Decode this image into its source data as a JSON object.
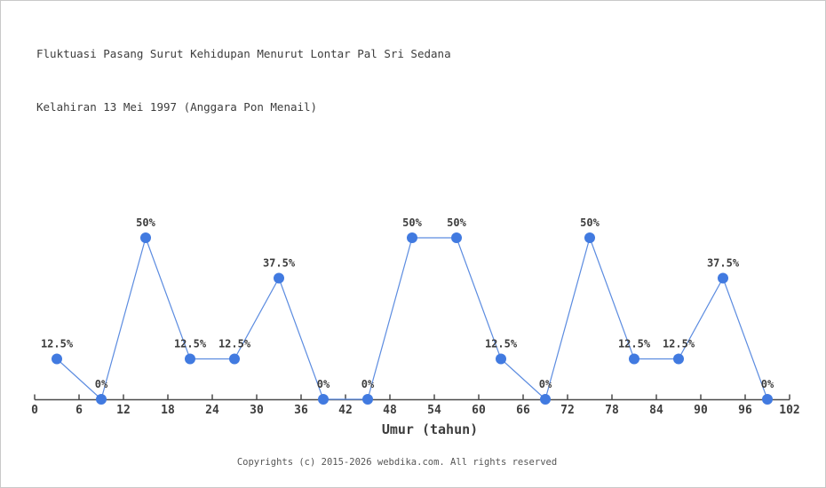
{
  "page": {
    "background": "#ffffff",
    "border_color": "#c9c9c9"
  },
  "header": {
    "title_line1": "Fluktuasi Pasang Surut Kehidupan Menurut Lontar Pal Sri Sedana",
    "title_line2": "Kelahiran 13 Mei 1997 (Anggara Pon Menail)"
  },
  "chart_data": {
    "type": "line",
    "title": "Fluktuasi Pasang Surut Kehidupan Menurut Lontar Pal Sri Sedana Kelahiran 13 Mei 1997 (Anggara Pon Menail)",
    "x": [
      3,
      9,
      15,
      21,
      27,
      33,
      39,
      45,
      51,
      57,
      63,
      69,
      75,
      81,
      87,
      93,
      99
    ],
    "values": [
      12.5,
      0,
      50,
      12.5,
      12.5,
      37.5,
      0,
      0,
      50,
      50,
      12.5,
      0,
      50,
      12.5,
      12.5,
      37.5,
      0
    ],
    "point_labels": [
      "12.5%",
      "0%",
      "50%",
      "12.5%",
      "12.5%",
      "37.5%",
      "0%",
      "0%",
      "50%",
      "50%",
      "12.5%",
      "0%",
      "50%",
      "12.5%",
      "12.5%",
      "37.5%",
      "0%"
    ],
    "xlabel": "Umur (tahun)",
    "ylabel": "",
    "x_ticks": [
      0,
      6,
      12,
      18,
      24,
      30,
      36,
      42,
      48,
      54,
      60,
      66,
      72,
      78,
      84,
      90,
      96,
      102
    ],
    "xlim": [
      0,
      102
    ],
    "ylim": [
      0,
      55
    ],
    "grid": false,
    "legend": null,
    "line_color": "#5c8ce0",
    "marker_color": "#417ae0",
    "axis_color": "#4a4a4a",
    "text_color": "#3d3d3d"
  },
  "footer": {
    "copyright": "Copyrights (c) 2015-2026 webdika.com. All rights reserved"
  }
}
